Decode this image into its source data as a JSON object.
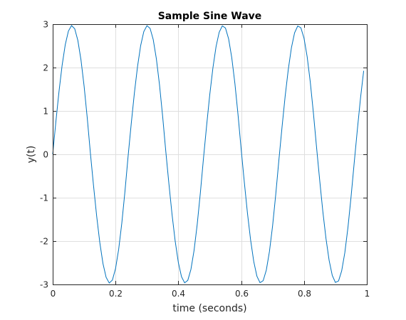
{
  "chart_data": {
    "type": "line",
    "title": "Sample Sine Wave",
    "xlabel": "time (seconds)",
    "ylabel": "y(t)",
    "xlim": [
      0,
      1
    ],
    "ylim": [
      -3,
      3
    ],
    "xticks": [
      0,
      0.2,
      0.4,
      0.6,
      0.8,
      1
    ],
    "xtick_labels": [
      "0",
      "0.2",
      "0.4",
      "0.6",
      "0.8",
      "1"
    ],
    "yticks": [
      -3,
      -2,
      -1,
      0,
      1,
      2,
      3
    ],
    "ytick_labels": [
      "-3",
      "-2",
      "-1",
      "0",
      "1",
      "2",
      "3"
    ],
    "grid": true,
    "series": [
      {
        "color": "#0072bd",
        "x": [
          0,
          0.01,
          0.02,
          0.03,
          0.04,
          0.05,
          0.06,
          0.07,
          0.08,
          0.09,
          0.1,
          0.11,
          0.12,
          0.13,
          0.14,
          0.15,
          0.16,
          0.17,
          0.18,
          0.19,
          0.2,
          0.21,
          0.22,
          0.23,
          0.24,
          0.25,
          0.26,
          0.27,
          0.28,
          0.29,
          0.3,
          0.31,
          0.32,
          0.33,
          0.34,
          0.35,
          0.36,
          0.37,
          0.38,
          0.39,
          0.4,
          0.41,
          0.42,
          0.43,
          0.44,
          0.45,
          0.46,
          0.47,
          0.48,
          0.49,
          0.5,
          0.51,
          0.52,
          0.53,
          0.54,
          0.55,
          0.56,
          0.57,
          0.58,
          0.59,
          0.6,
          0.61,
          0.62,
          0.63,
          0.64,
          0.65,
          0.66,
          0.67,
          0.68,
          0.69,
          0.7,
          0.71,
          0.72,
          0.73,
          0.74,
          0.75,
          0.76,
          0.77,
          0.78,
          0.79,
          0.8,
          0.81,
          0.82,
          0.83,
          0.84,
          0.85,
          0.86,
          0.87,
          0.88,
          0.89,
          0.9,
          0.91,
          0.92,
          0.93,
          0.94,
          0.95,
          0.96,
          0.97,
          0.98,
          0.99
        ],
        "y": [
          0,
          0.7465,
          1.4459,
          2.0534,
          2.5293,
          2.8415,
          2.9672,
          2.8952,
          2.627,
          2.1763,
          1.568,
          0.8363,
          0.023,
          -0.7258,
          -1.4284,
          -2.0378,
          -2.5181,
          -2.8352,
          -2.9661,
          -2.8993,
          -2.636,
          -2.1896,
          -1.5846,
          -0.8551,
          -0.0458,
          0.7052,
          1.4108,
          2.0223,
          2.5065,
          2.8287,
          2.9648,
          2.9032,
          2.6449,
          2.2027,
          1.601,
          0.8738,
          0.0685,
          -0.6844,
          -1.3931,
          -2.0065,
          -2.4947,
          -2.822,
          -2.9633,
          -2.9069,
          -2.6535,
          -2.2156,
          -1.6173,
          -0.8925,
          -0.0912,
          0.6636,
          1.3752,
          1.9906,
          2.4828,
          2.815,
          2.9615,
          2.9102,
          2.6619,
          2.2284,
          1.6336,
          0.9111,
          0.1139,
          -0.6427,
          -1.3573,
          -1.9746,
          -2.4706,
          -2.8078,
          -2.9595,
          -2.9132,
          -2.6701,
          -2.241,
          -1.6497,
          -0.9295,
          -0.1365,
          0.6218,
          1.3393,
          1.9585,
          2.4582,
          2.8004,
          2.9572,
          2.916,
          2.678,
          2.2533,
          1.6657,
          0.9479,
          0.1591,
          -0.6007,
          -1.3211,
          -1.9422,
          -2.4456,
          -2.7927,
          -2.9546,
          -2.9185,
          -2.6856,
          -2.2655,
          -1.6815,
          -0.9662,
          -0.1816,
          0.5796,
          1.3028,
          1.9259
        ]
      }
    ]
  }
}
